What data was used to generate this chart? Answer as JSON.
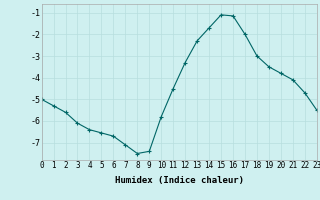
{
  "x": [
    0,
    1,
    2,
    3,
    4,
    5,
    6,
    7,
    8,
    9,
    10,
    11,
    12,
    13,
    14,
    15,
    16,
    17,
    18,
    19,
    20,
    21,
    22,
    23
  ],
  "y": [
    -5.0,
    -5.3,
    -5.6,
    -6.1,
    -6.4,
    -6.55,
    -6.7,
    -7.1,
    -7.5,
    -7.4,
    -5.8,
    -4.5,
    -3.3,
    -2.3,
    -1.7,
    -1.1,
    -1.15,
    -2.0,
    -3.0,
    -3.5,
    -3.8,
    -4.1,
    -4.7,
    -5.5
  ],
  "xlabel": "Humidex (Indice chaleur)",
  "xlim": [
    0,
    23
  ],
  "ylim": [
    -7.8,
    -0.6
  ],
  "yticks": [
    -7,
    -6,
    -5,
    -4,
    -3,
    -2,
    -1
  ],
  "xticks": [
    0,
    1,
    2,
    3,
    4,
    5,
    6,
    7,
    8,
    9,
    10,
    11,
    12,
    13,
    14,
    15,
    16,
    17,
    18,
    19,
    20,
    21,
    22,
    23
  ],
  "line_color": "#006666",
  "marker": "+",
  "marker_size": 3,
  "marker_edge_width": 0.8,
  "line_width": 0.8,
  "background_color": "#cff0f0",
  "grid_color": "#b8dede",
  "tick_fontsize": 5.5,
  "xlabel_fontsize": 6.5,
  "xlabel_fontweight": "bold"
}
